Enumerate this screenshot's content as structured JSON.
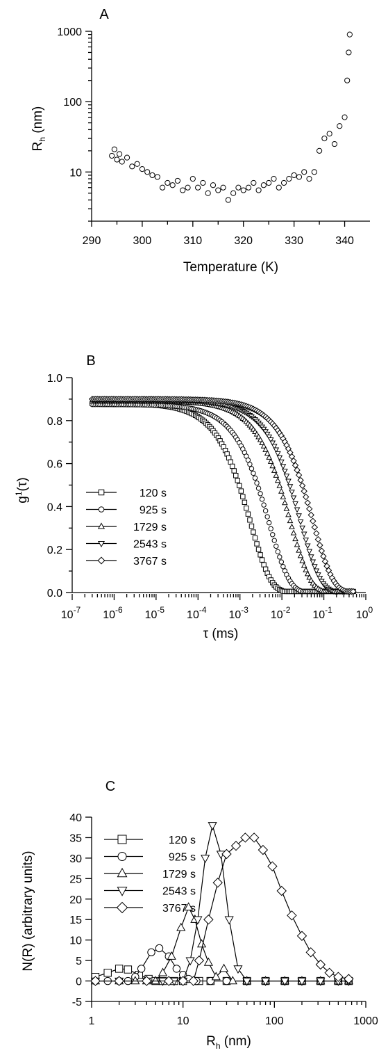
{
  "chart_data": [
    {
      "panel": "A",
      "type": "scatter",
      "xlabel": "Temperature (K)",
      "ylabel": "R_h (nm)",
      "ylabel_main": "R",
      "ylabel_sub": "h",
      "ylabel_tail": " (nm)",
      "xlim": [
        290,
        345
      ],
      "ylim": [
        2,
        1000
      ],
      "yscale": "log",
      "xticks": [
        290,
        300,
        310,
        320,
        330,
        340
      ],
      "xtick_labels": [
        "290",
        "300",
        "310",
        "320",
        "330",
        "340"
      ],
      "yticks": [
        10,
        100,
        1000
      ],
      "ytick_labels": [
        "10",
        "100",
        "1000"
      ],
      "points": [
        [
          294,
          17
        ],
        [
          294.5,
          21
        ],
        [
          295,
          15
        ],
        [
          295.5,
          18
        ],
        [
          296,
          14
        ],
        [
          297,
          16
        ],
        [
          298,
          12
        ],
        [
          299,
          13
        ],
        [
          300,
          11
        ],
        [
          301,
          10
        ],
        [
          302,
          9
        ],
        [
          303,
          8.5
        ],
        [
          304,
          6
        ],
        [
          305,
          7
        ],
        [
          306,
          6.5
        ],
        [
          307,
          7.5
        ],
        [
          308,
          5.5
        ],
        [
          309,
          6
        ],
        [
          310,
          8
        ],
        [
          311,
          6
        ],
        [
          312,
          7
        ],
        [
          313,
          5
        ],
        [
          314,
          6.5
        ],
        [
          315,
          5.5
        ],
        [
          316,
          6
        ],
        [
          317,
          4
        ],
        [
          318,
          5
        ],
        [
          319,
          6
        ],
        [
          320,
          5.5
        ],
        [
          321,
          6
        ],
        [
          322,
          7
        ],
        [
          323,
          5.5
        ],
        [
          324,
          6.5
        ],
        [
          325,
          7
        ],
        [
          326,
          8
        ],
        [
          327,
          6
        ],
        [
          328,
          7
        ],
        [
          329,
          8
        ],
        [
          330,
          9
        ],
        [
          331,
          8.5
        ],
        [
          332,
          10
        ],
        [
          333,
          8
        ],
        [
          334,
          10
        ],
        [
          335,
          20
        ],
        [
          336,
          30
        ],
        [
          337,
          35
        ],
        [
          338,
          25
        ],
        [
          339,
          45
        ],
        [
          340,
          60
        ],
        [
          340.5,
          200
        ],
        [
          340.8,
          500
        ],
        [
          341,
          900
        ]
      ]
    },
    {
      "panel": "B",
      "type": "scatter",
      "xlabel": "τ (ms)",
      "ylabel": "g¹(τ)",
      "ylabel_main": "g",
      "ylabel_sup": "1",
      "ylabel_tail": "(τ)",
      "xscale": "log",
      "xlim": [
        1e-07,
        1
      ],
      "ylim": [
        0,
        1
      ],
      "yticks": [
        0.0,
        0.2,
        0.4,
        0.6,
        0.8,
        1.0
      ],
      "ytick_labels": [
        "0.0",
        "0.2",
        "0.4",
        "0.6",
        "0.8",
        "1.0"
      ],
      "xtick_exponents": [
        "-7",
        "-6",
        "-5",
        "-4",
        "-3",
        "-2",
        "-1",
        "0"
      ],
      "xtick_base": "10",
      "series": [
        {
          "name": "120 s",
          "marker": "square",
          "tau_c": 0.0018,
          "amp": 0.88
        },
        {
          "name": "925 s",
          "marker": "circle",
          "tau_c": 0.005,
          "amp": 0.875
        },
        {
          "name": "1729 s",
          "marker": "triangle-up",
          "tau_c": 0.016,
          "amp": 0.89
        },
        {
          "name": "2543 s",
          "marker": "triangle-down",
          "tau_c": 0.028,
          "amp": 0.895
        },
        {
          "name": "3767 s",
          "marker": "diamond",
          "tau_c": 0.055,
          "amp": 0.9
        }
      ]
    },
    {
      "panel": "C",
      "type": "line",
      "xlabel": "R_h (nm)",
      "xlabel_main": "R",
      "xlabel_sub": "h",
      "xlabel_tail": " (nm)",
      "ylabel": "N(R) (arbitrary units)",
      "xscale": "log",
      "xlim": [
        1,
        1000
      ],
      "ylim": [
        -5,
        40
      ],
      "yticks": [
        -5,
        0,
        5,
        10,
        15,
        20,
        25,
        30,
        35,
        40
      ],
      "ytick_labels": [
        "-5",
        "0",
        "5",
        "10",
        "15",
        "20",
        "25",
        "30",
        "35",
        "40"
      ],
      "xticks": [
        1,
        10,
        100,
        1000
      ],
      "xtick_labels": [
        "1",
        "10",
        "100",
        "1000"
      ],
      "series": [
        {
          "name": "120 s",
          "marker": "square",
          "points": [
            [
              1.1,
              1
            ],
            [
              1.5,
              2
            ],
            [
              2,
              3
            ],
            [
              2.5,
              2.8
            ],
            [
              3.3,
              1.5
            ],
            [
              4.2,
              0.5
            ],
            [
              5,
              0
            ],
            [
              6,
              0
            ],
            [
              8,
              0
            ],
            [
              10,
              0
            ],
            [
              15,
              0
            ],
            [
              20,
              0
            ],
            [
              30,
              0
            ],
            [
              50,
              0
            ],
            [
              80,
              0
            ],
            [
              130,
              0
            ],
            [
              200,
              0
            ],
            [
              320,
              0
            ],
            [
              500,
              0
            ],
            [
              650,
              0
            ]
          ]
        },
        {
          "name": "925 s",
          "marker": "circle",
          "points": [
            [
              1.1,
              0
            ],
            [
              1.5,
              0
            ],
            [
              2,
              0
            ],
            [
              2.5,
              0
            ],
            [
              3,
              1
            ],
            [
              3.5,
              3
            ],
            [
              4.5,
              7
            ],
            [
              5.5,
              8
            ],
            [
              7,
              6
            ],
            [
              8.5,
              3
            ],
            [
              10,
              1.5
            ],
            [
              11.5,
              0.5
            ],
            [
              14,
              0
            ],
            [
              20,
              0
            ],
            [
              30,
              0
            ],
            [
              50,
              0
            ],
            [
              80,
              0
            ],
            [
              130,
              0
            ],
            [
              200,
              0
            ],
            [
              320,
              0
            ],
            [
              500,
              0
            ],
            [
              650,
              0
            ]
          ]
        },
        {
          "name": "1729 s",
          "marker": "triangle-up",
          "points": [
            [
              1.1,
              0
            ],
            [
              2,
              0
            ],
            [
              3,
              0
            ],
            [
              4,
              0
            ],
            [
              5,
              0
            ],
            [
              6,
              2
            ],
            [
              7.5,
              6
            ],
            [
              9.5,
              13
            ],
            [
              11.5,
              18
            ],
            [
              13.5,
              15
            ],
            [
              16,
              9
            ],
            [
              19,
              4.5
            ],
            [
              23,
              1
            ],
            [
              28,
              3
            ],
            [
              35,
              0
            ],
            [
              50,
              0
            ],
            [
              80,
              0
            ],
            [
              130,
              0
            ],
            [
              200,
              0
            ],
            [
              320,
              0
            ],
            [
              500,
              0
            ],
            [
              650,
              0
            ]
          ]
        },
        {
          "name": "2543 s",
          "marker": "triangle-down",
          "points": [
            [
              1.1,
              0
            ],
            [
              2,
              0
            ],
            [
              4,
              0
            ],
            [
              6,
              0
            ],
            [
              8,
              0
            ],
            [
              10,
              0
            ],
            [
              12,
              5
            ],
            [
              14.5,
              15
            ],
            [
              17.5,
              30
            ],
            [
              21,
              38
            ],
            [
              26,
              31
            ],
            [
              32,
              15
            ],
            [
              40,
              3
            ],
            [
              50,
              0
            ],
            [
              80,
              0
            ],
            [
              130,
              0
            ],
            [
              200,
              0
            ],
            [
              320,
              0
            ],
            [
              500,
              0
            ],
            [
              650,
              0
            ]
          ]
        },
        {
          "name": "3767 s",
          "marker": "diamond",
          "points": [
            [
              1.1,
              0
            ],
            [
              2,
              0
            ],
            [
              4,
              0
            ],
            [
              7,
              0
            ],
            [
              10,
              0
            ],
            [
              13,
              0
            ],
            [
              15,
              5
            ],
            [
              19,
              15
            ],
            [
              24,
              24
            ],
            [
              30,
              31
            ],
            [
              38,
              33
            ],
            [
              48,
              35
            ],
            [
              60,
              35
            ],
            [
              75,
              32
            ],
            [
              95,
              28
            ],
            [
              120,
              22
            ],
            [
              155,
              16
            ],
            [
              200,
              11
            ],
            [
              250,
              7
            ],
            [
              320,
              4
            ],
            [
              400,
              2
            ],
            [
              500,
              1
            ],
            [
              650,
              0.5
            ]
          ]
        }
      ]
    }
  ]
}
